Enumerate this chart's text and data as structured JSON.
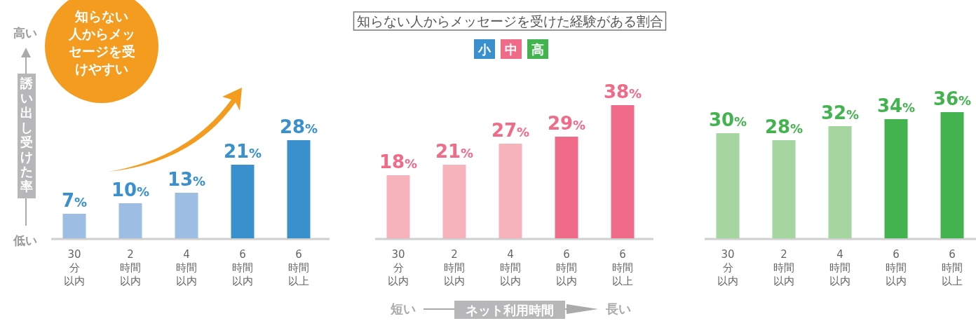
{
  "chart_data": [
    {
      "type": "bar",
      "ylabel": "誘い出し受けた率",
      "annotations": [
        "高い",
        "低い",
        "知らない人からメッセージを受けやすい"
      ],
      "legend": "top",
      "categories": [
        "30分以内",
        "2時間以内",
        "4時間以内",
        "6時間以内",
        "6時間以上"
      ],
      "series": [
        {
          "name": "小",
          "color": "#3a8fcd",
          "colors": [
            "#9dbde3",
            "#9dbde3",
            "#9dbde3",
            "#3a8fcd",
            "#3a8fcd"
          ],
          "values": [
            7,
            10,
            13,
            21,
            28
          ],
          "value_labels": [
            "7%",
            "10%",
            "13%",
            "21%",
            "28%"
          ]
        }
      ]
    },
    {
      "type": "bar",
      "title": "知らない人からメッセージを受けた経験がある割合",
      "xlabel": "ネット利用時間",
      "annotations": [
        "短い",
        "長い"
      ],
      "legend": "top",
      "categories": [
        "30分以内",
        "2時間以内",
        "4時間以内",
        "6時間以内",
        "6時間以上"
      ],
      "series": [
        {
          "name": "中",
          "color": "#f06b88",
          "colors": [
            "#f7b3bb",
            "#f7b3bb",
            "#f7b3bb",
            "#f06b88",
            "#f06b88"
          ],
          "values": [
            18,
            21,
            27,
            29,
            38
          ],
          "value_labels": [
            "18%",
            "21%",
            "27%",
            "29%",
            "38%"
          ]
        }
      ]
    },
    {
      "type": "bar",
      "legend": "top",
      "categories": [
        "30分以内",
        "2時間以内",
        "4時間以内",
        "6時間以内",
        "6時間以上"
      ],
      "series": [
        {
          "name": "高",
          "color": "#43b34f",
          "colors": [
            "#a5d6a0",
            "#a5d6a0",
            "#a5d6a0",
            "#43b34f",
            "#43b34f"
          ],
          "values": [
            30,
            28,
            32,
            34,
            36
          ],
          "value_labels": [
            "30%",
            "28%",
            "32%",
            "34%",
            "36%"
          ]
        }
      ]
    }
  ]
}
